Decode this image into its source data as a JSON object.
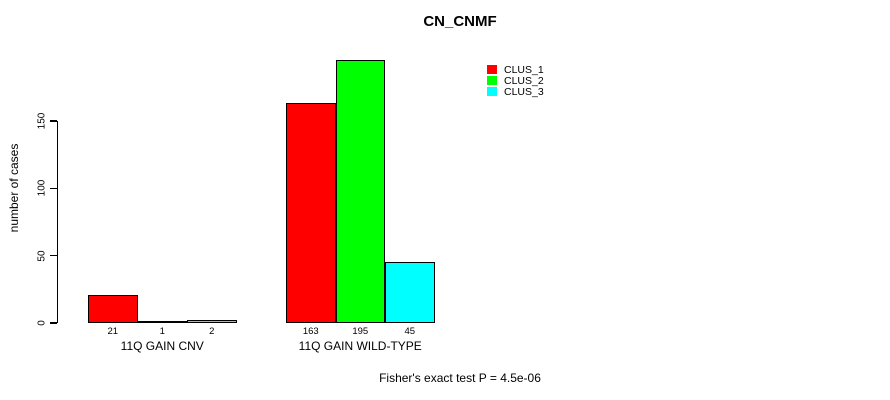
{
  "title": "CN_CNMF",
  "y_axis_label": "number of cases",
  "footer": "Fisher's exact test P = 4.5e-06",
  "chart_data": {
    "type": "bar",
    "title": "CN_CNMF",
    "xlabel": "",
    "ylabel": "number of cases",
    "ylim": [
      0,
      150
    ],
    "yticks": [
      0,
      50,
      100,
      150
    ],
    "grid": false,
    "legend_position": "top-right",
    "categories": [
      "11Q GAIN CNV",
      "11Q GAIN WILD-TYPE"
    ],
    "series": [
      {
        "name": "CLUS_1",
        "color": "#ff0000",
        "values": [
          21,
          163
        ]
      },
      {
        "name": "CLUS_2",
        "color": "#00ff00",
        "values": [
          1,
          195
        ]
      },
      {
        "name": "CLUS_3",
        "color": "#00ffff",
        "values": [
          2,
          45
        ]
      }
    ],
    "bar_value_labels": [
      [
        21,
        1,
        2
      ],
      [
        163,
        195,
        45
      ]
    ],
    "annotation": "Fisher's exact test P = 4.5e-06"
  }
}
